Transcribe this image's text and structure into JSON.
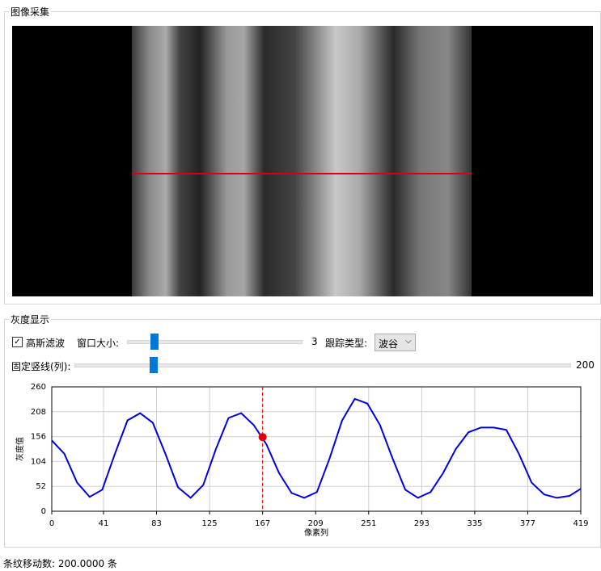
{
  "groups": {
    "capture": {
      "title": "图像采集"
    },
    "gray": {
      "title": "灰度显示"
    }
  },
  "controls": {
    "gaussian": {
      "label": "高斯滤波",
      "checked": true
    },
    "window_size": {
      "label": "窗口大小:",
      "value": 3
    },
    "track_type": {
      "label": "跟踪类型:",
      "value": "波谷"
    },
    "fixed_column": {
      "label": "固定竖线(列):",
      "value": 200
    }
  },
  "status": {
    "text": "条纹移动数: 200.0000 条"
  },
  "chart_data": {
    "type": "line",
    "xlabel": "像素列",
    "ylabel": "灰度值",
    "color": "#0000e0",
    "x": [
      0,
      10,
      20,
      30,
      40,
      50,
      60,
      70,
      80,
      90,
      100,
      110,
      120,
      130,
      140,
      150,
      160,
      170,
      180,
      190,
      200,
      210,
      220,
      230,
      240,
      250,
      260,
      270,
      280,
      290,
      300,
      310,
      320,
      330,
      340,
      350,
      360,
      370,
      380,
      390,
      400,
      410,
      419
    ],
    "values": [
      148,
      120,
      60,
      30,
      45,
      120,
      190,
      205,
      185,
      120,
      50,
      28,
      55,
      130,
      195,
      205,
      180,
      140,
      80,
      38,
      28,
      40,
      110,
      190,
      235,
      225,
      180,
      110,
      45,
      28,
      40,
      80,
      130,
      165,
      175,
      175,
      170,
      120,
      60,
      35,
      28,
      32,
      47
    ],
    "xlim": [
      0,
      419
    ],
    "ylim": [
      0,
      260
    ],
    "xticks": [
      0,
      41,
      83,
      125,
      167,
      209,
      251,
      293,
      335,
      377,
      419
    ],
    "yticks": [
      0,
      52,
      104,
      156,
      208,
      260
    ],
    "grid": true,
    "marker": {
      "x": 167,
      "y": 155,
      "color": "#e00000"
    }
  }
}
